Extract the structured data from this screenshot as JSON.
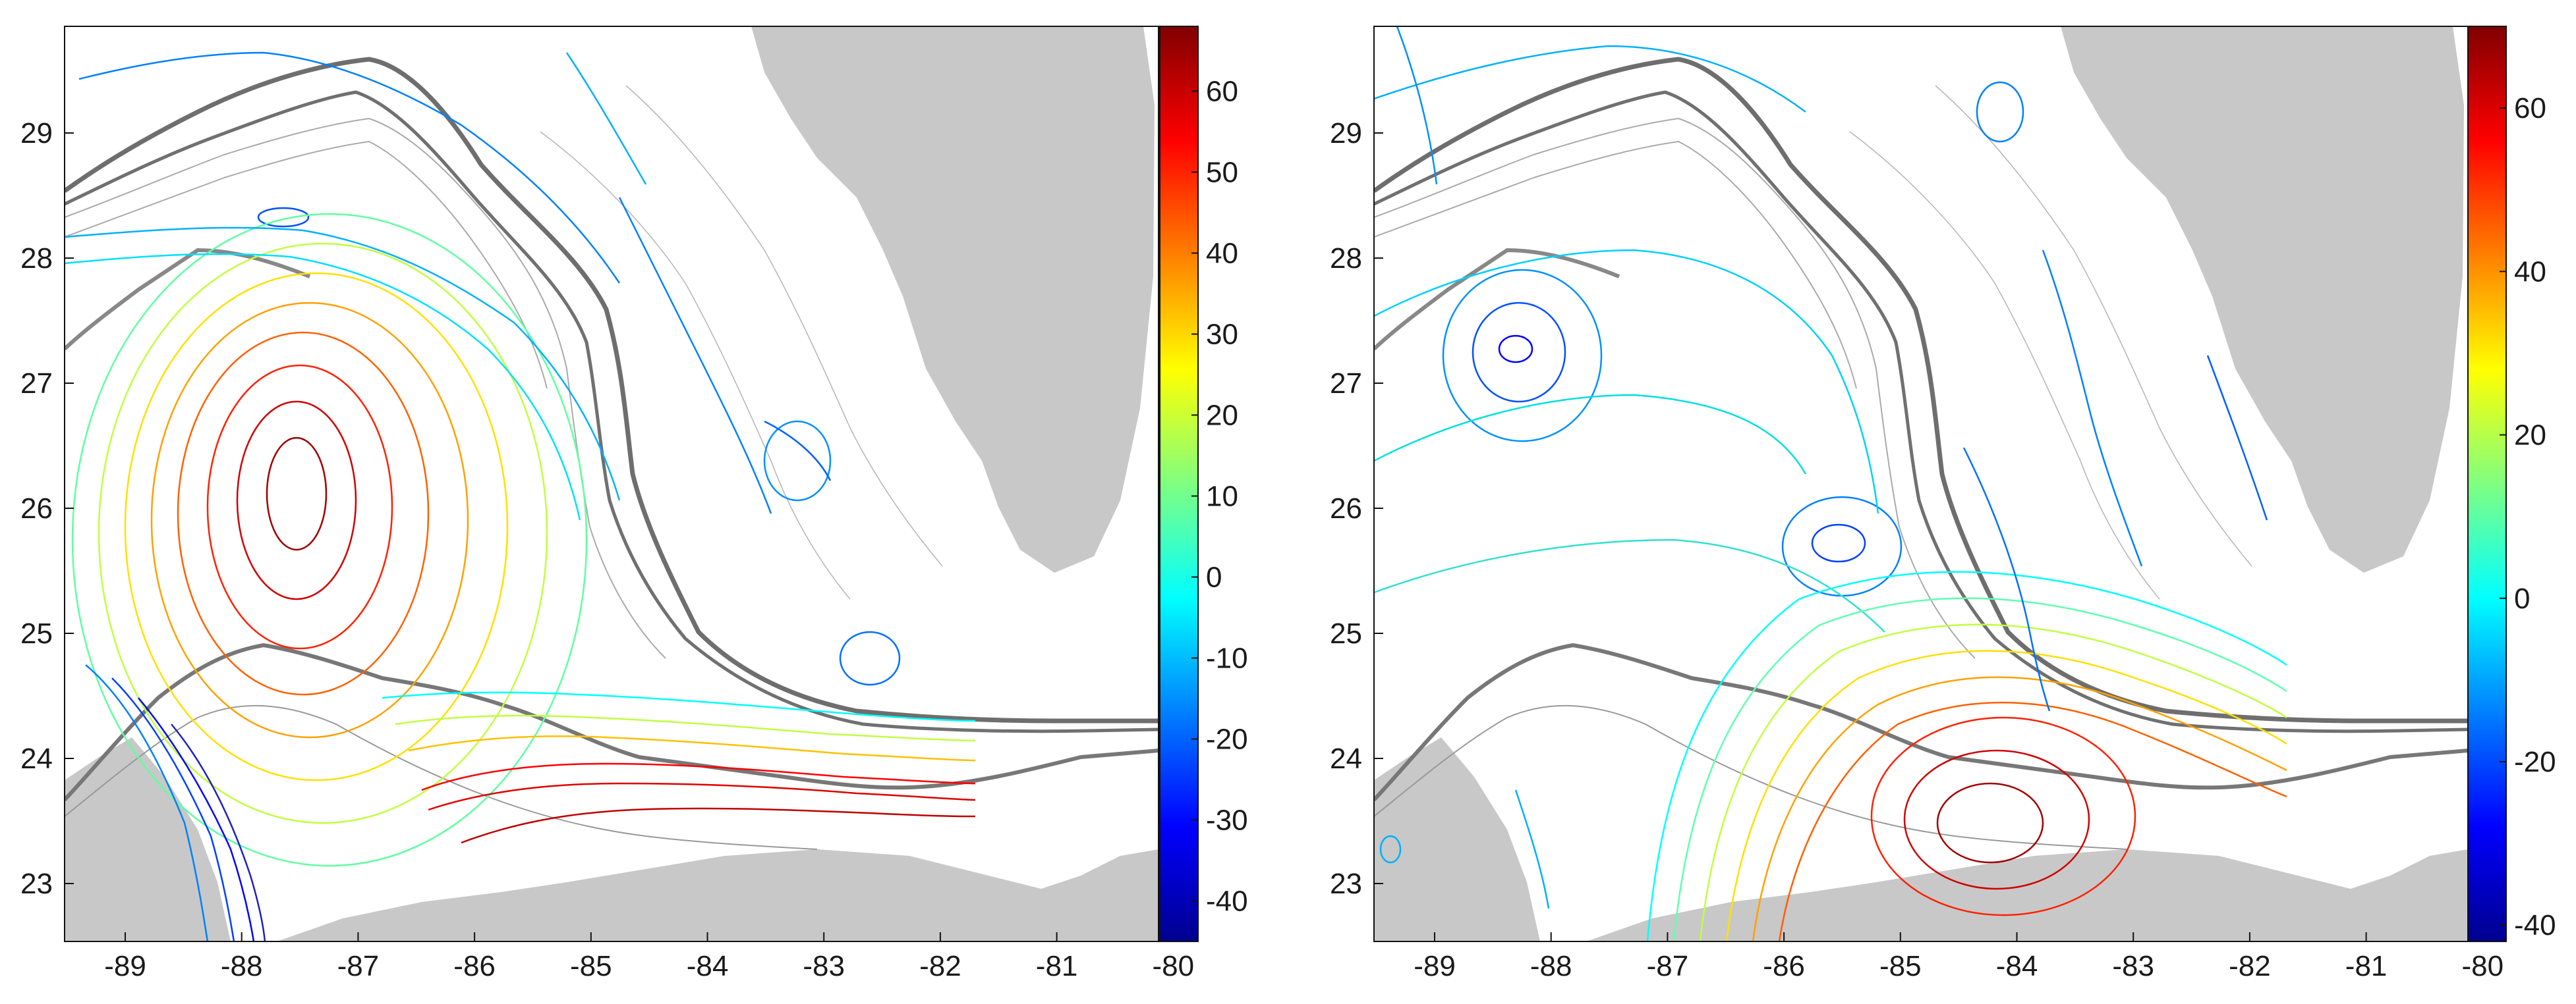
{
  "panels": [
    {
      "id": "left",
      "x_ticks": [
        "-89",
        "-88",
        "-87",
        "-86",
        "-85",
        "-84",
        "-83",
        "-82",
        "-81",
        "-80"
      ],
      "y_ticks": [
        "29",
        "28",
        "27",
        "26",
        "25",
        "24",
        "23"
      ],
      "colorbar": {
        "range": [
          -45,
          68
        ],
        "ticks": [
          "60",
          "50",
          "40",
          "30",
          "20",
          "10",
          "0",
          "-10",
          "-20",
          "-30",
          "-40"
        ],
        "tick_values": [
          60,
          50,
          40,
          30,
          20,
          10,
          0,
          -10,
          -20,
          -30,
          -40
        ]
      }
    },
    {
      "id": "right",
      "x_ticks": [
        "-89",
        "-88",
        "-87",
        "-86",
        "-85",
        "-84",
        "-83",
        "-82",
        "-81",
        "-80"
      ],
      "y_ticks": [
        "29",
        "28",
        "27",
        "26",
        "25",
        "24",
        "23"
      ],
      "colorbar": {
        "range": [
          -42,
          70
        ],
        "ticks": [
          "60",
          "40",
          "20",
          "0",
          "-20",
          "-40"
        ],
        "tick_values": [
          60,
          40,
          20,
          0,
          -20,
          -40
        ]
      }
    }
  ],
  "colors": {
    "land": "#c8c8c8",
    "bathymetry": "#707070",
    "frame": "#111111"
  }
}
